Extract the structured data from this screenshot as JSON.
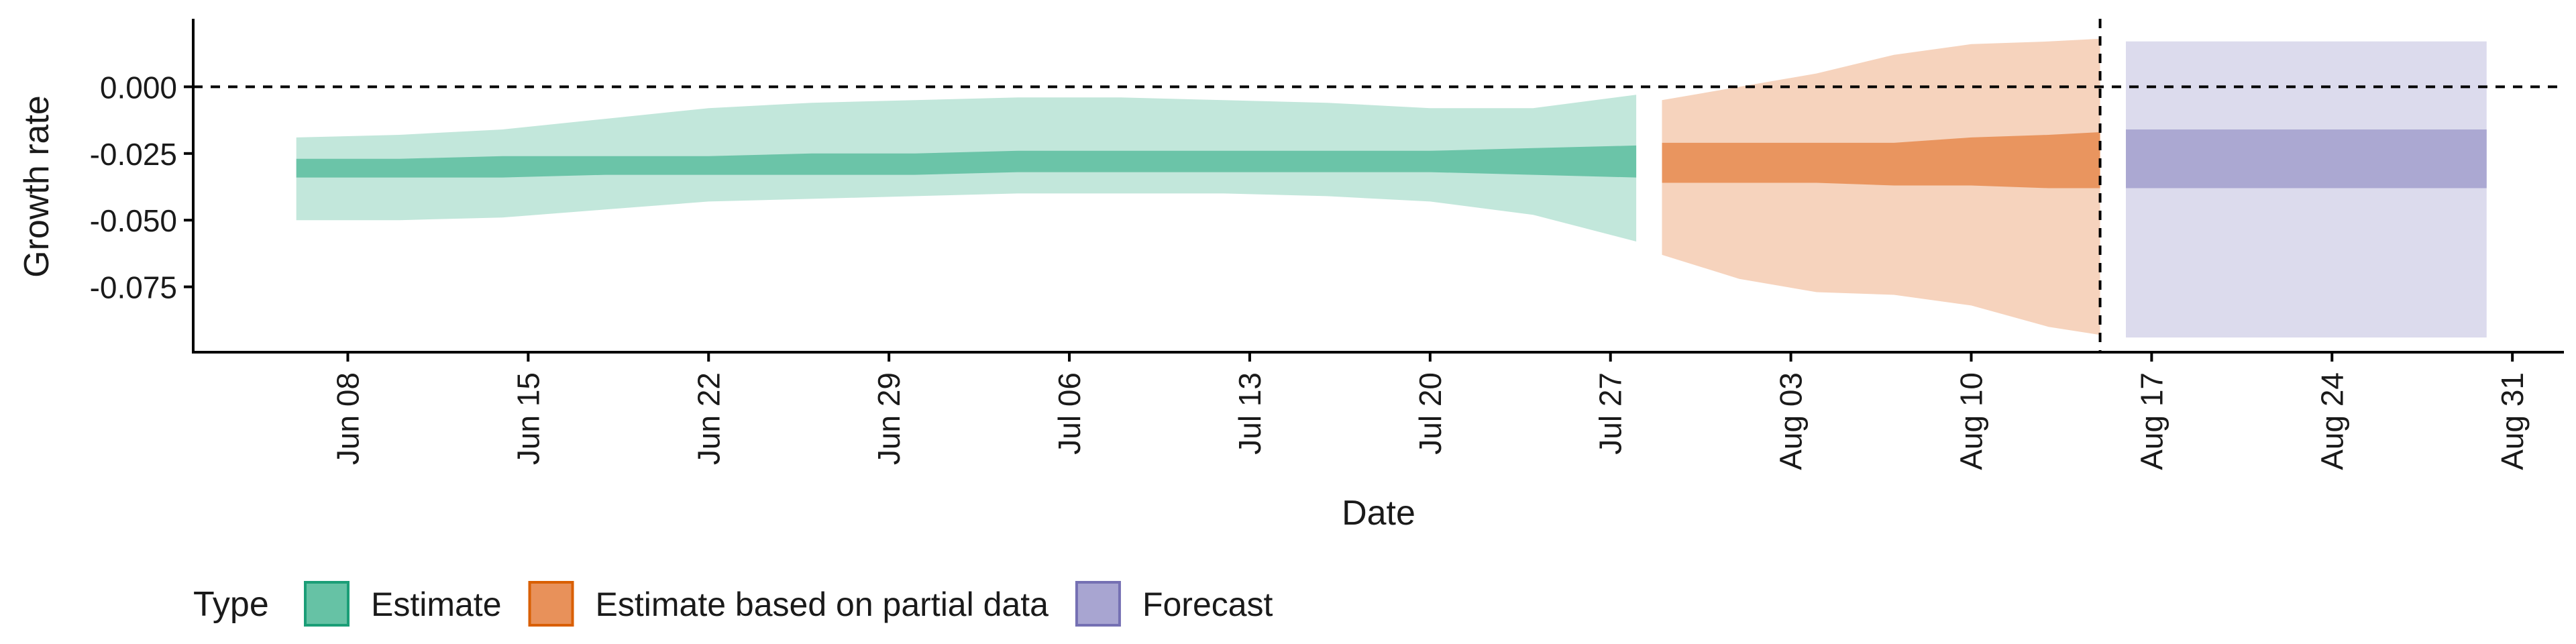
{
  "chart_data": {
    "type": "area",
    "xlabel": "Date",
    "ylabel": "Growth rate",
    "x_ticks": [
      "2020-06-08",
      "2020-06-15",
      "2020-06-22",
      "2020-06-29",
      "2020-07-06",
      "2020-07-13",
      "2020-07-20",
      "2020-07-27",
      "2020-08-03",
      "2020-08-10",
      "2020-08-17",
      "2020-08-24",
      "2020-08-31"
    ],
    "x_tick_labels": [
      "Jun 08",
      "Jun 15",
      "Jun 22",
      "Jun 29",
      "Jul 06",
      "Jul 13",
      "Jul 20",
      "Jul 27",
      "Aug 03",
      "Aug 10",
      "Aug 17",
      "Aug 24",
      "Aug 31"
    ],
    "y_ticks": [
      0.0,
      -0.025,
      -0.05,
      -0.075
    ],
    "y_tick_labels": [
      "0.000",
      "-0.025",
      "-0.050",
      "-0.075"
    ],
    "xlim": [
      "2020-06-02",
      "2020-09-02"
    ],
    "ylim": [
      -0.0995,
      0.0255
    ],
    "reference_lines": {
      "horizontal_y": 0.0,
      "vertical_x": "2020-08-15"
    },
    "legend": {
      "title": "Type",
      "position": "bottom-left",
      "entries": [
        "Estimate",
        "Estimate based on partial data",
        "Forecast"
      ]
    },
    "colors": {
      "Estimate": {
        "fill": "#66C2A5",
        "stroke": "#1B9E77"
      },
      "Estimate based on partial data": {
        "fill": "#E8915A",
        "stroke": "#D95F02"
      },
      "Forecast": {
        "fill": "#A8A5D1",
        "stroke": "#7570B3"
      }
    },
    "series": [
      {
        "name": "Estimate",
        "color": "#66C2A5",
        "x": [
          "2020-06-06",
          "2020-06-10",
          "2020-06-14",
          "2020-06-18",
          "2020-06-22",
          "2020-06-26",
          "2020-06-30",
          "2020-07-04",
          "2020-07-08",
          "2020-07-12",
          "2020-07-16",
          "2020-07-20",
          "2020-07-24",
          "2020-07-28"
        ],
        "lower_90": [
          -0.05,
          -0.05,
          -0.049,
          -0.046,
          -0.043,
          -0.042,
          -0.041,
          -0.04,
          -0.04,
          -0.04,
          -0.041,
          -0.043,
          -0.048,
          -0.058
        ],
        "upper_90": [
          -0.019,
          -0.018,
          -0.016,
          -0.012,
          -0.008,
          -0.006,
          -0.005,
          -0.004,
          -0.004,
          -0.005,
          -0.006,
          -0.008,
          -0.008,
          -0.003
        ],
        "lower_50": [
          -0.034,
          -0.034,
          -0.034,
          -0.033,
          -0.033,
          -0.033,
          -0.033,
          -0.032,
          -0.032,
          -0.032,
          -0.032,
          -0.032,
          -0.033,
          -0.034
        ],
        "upper_50": [
          -0.027,
          -0.027,
          -0.026,
          -0.026,
          -0.026,
          -0.025,
          -0.025,
          -0.024,
          -0.024,
          -0.024,
          -0.024,
          -0.024,
          -0.023,
          -0.022
        ]
      },
      {
        "name": "Estimate based on partial data",
        "color": "#E8915A",
        "x": [
          "2020-07-29",
          "2020-08-01",
          "2020-08-04",
          "2020-08-07",
          "2020-08-10",
          "2020-08-13",
          "2020-08-15"
        ],
        "lower_90": [
          -0.063,
          -0.072,
          -0.077,
          -0.078,
          -0.082,
          -0.09,
          -0.093
        ],
        "upper_90": [
          -0.005,
          0.0,
          0.005,
          0.012,
          0.016,
          0.017,
          0.018
        ],
        "lower_50": [
          -0.036,
          -0.036,
          -0.036,
          -0.037,
          -0.037,
          -0.038,
          -0.038
        ],
        "upper_50": [
          -0.021,
          -0.021,
          -0.021,
          -0.021,
          -0.019,
          -0.018,
          -0.017
        ]
      },
      {
        "name": "Forecast",
        "color": "#A8A5D1",
        "x": [
          "2020-08-16",
          "2020-08-30"
        ],
        "lower_90": [
          -0.094,
          -0.094
        ],
        "upper_90": [
          0.017,
          0.017
        ],
        "lower_50": [
          -0.038,
          -0.038
        ],
        "upper_50": [
          -0.016,
          -0.016
        ]
      }
    ]
  }
}
